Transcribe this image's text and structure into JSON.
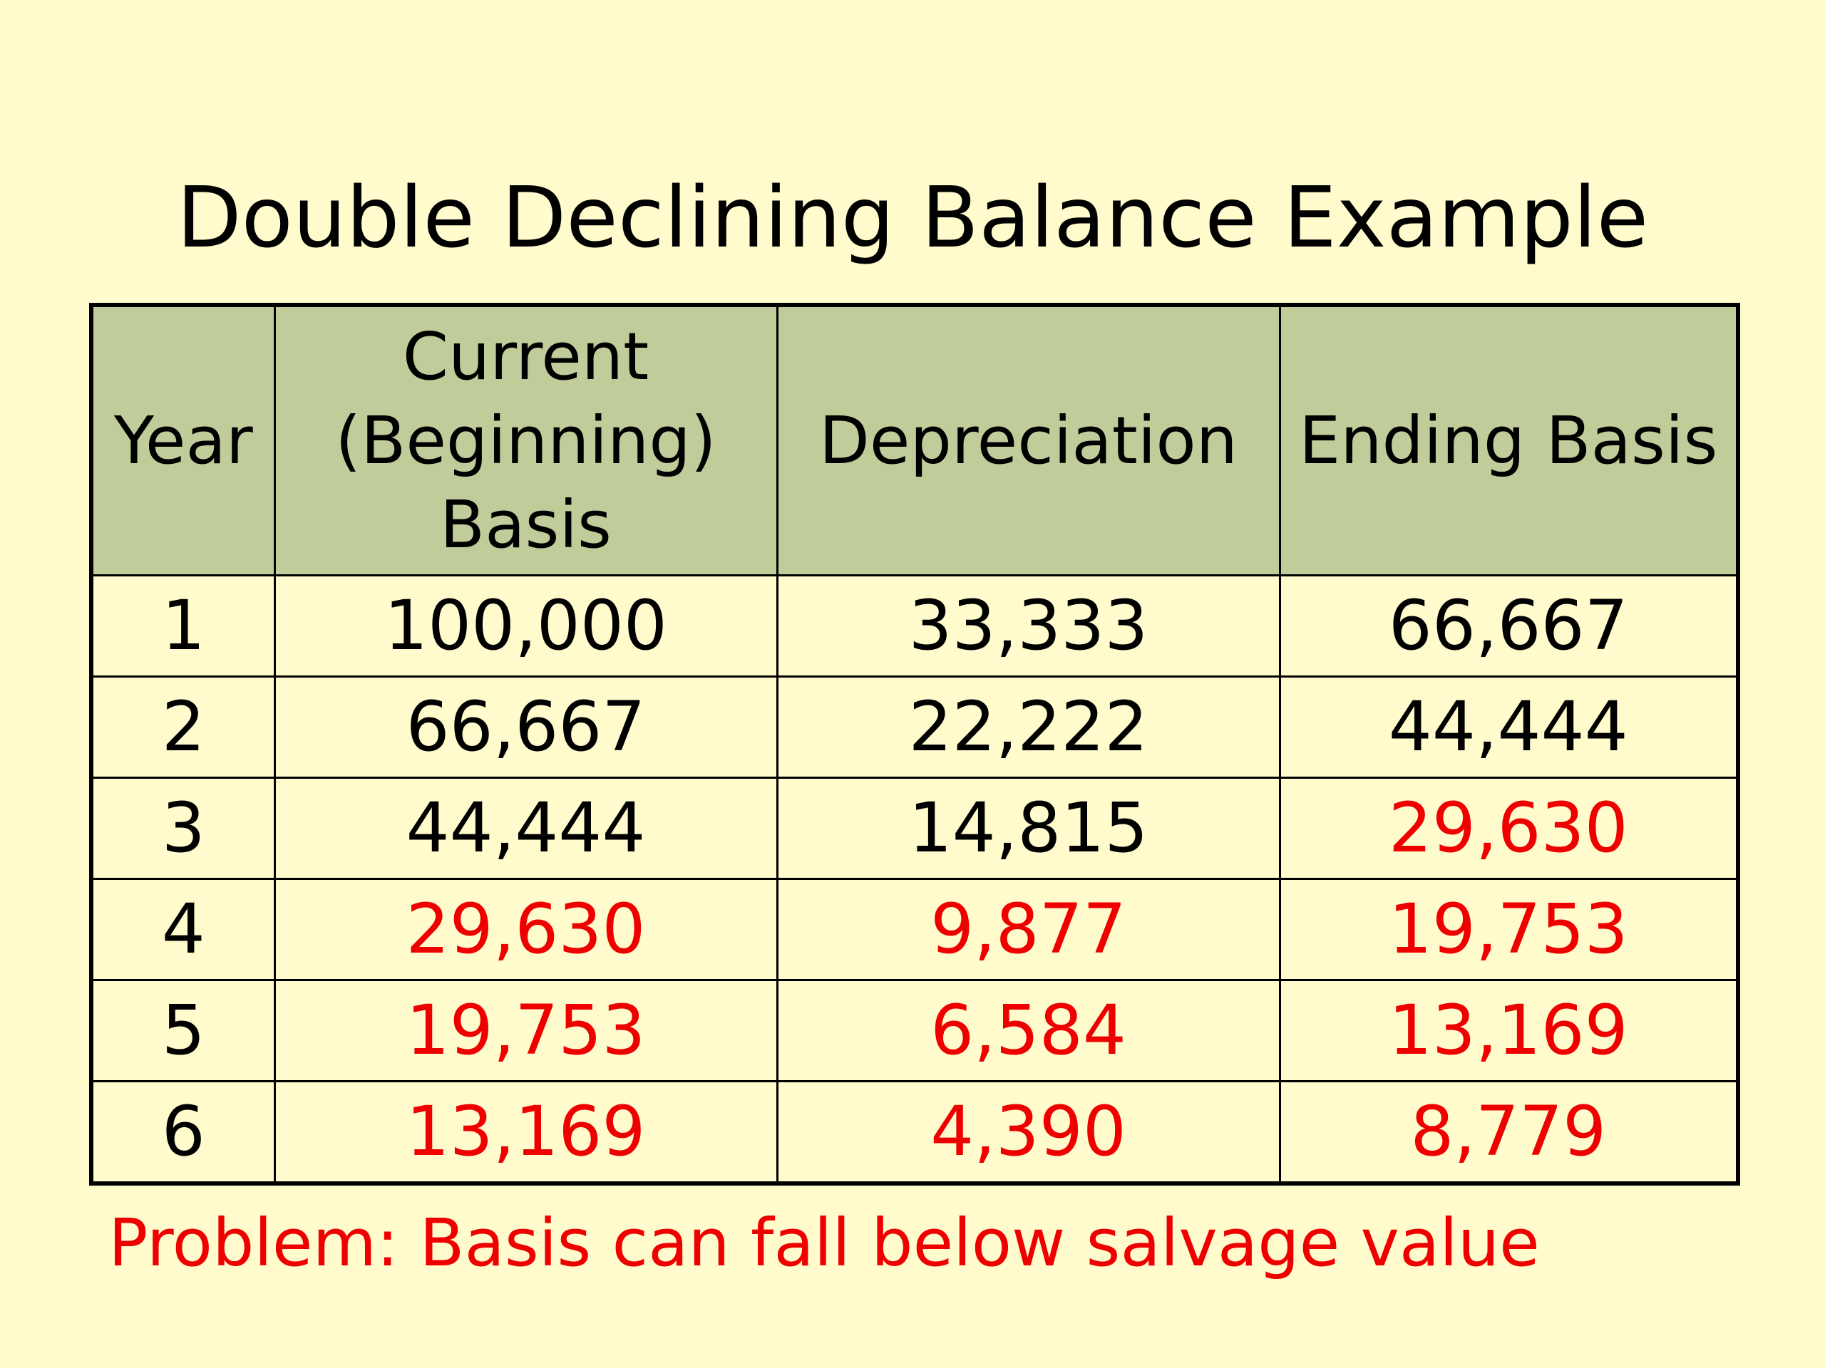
{
  "title": "Double Declining Balance Example",
  "colors": {
    "background": "#fffbcc",
    "header_fill": "#c0cc99",
    "text": "#000000",
    "highlight": "#ee0000"
  },
  "table": {
    "headers": {
      "year": "Year",
      "current_basis": [
        "Current",
        "(Beginning)",
        "Basis"
      ],
      "depreciation": "Depreciation",
      "ending_basis": "Ending Basis"
    },
    "rows": [
      {
        "year": "1",
        "current": "100,000",
        "depreciation": "33,333",
        "ending": "66,667",
        "red": {
          "current": false,
          "depreciation": false,
          "ending": false
        }
      },
      {
        "year": "2",
        "current": "66,667",
        "depreciation": "22,222",
        "ending": "44,444",
        "red": {
          "current": false,
          "depreciation": false,
          "ending": false
        }
      },
      {
        "year": "3",
        "current": "44,444",
        "depreciation": "14,815",
        "ending": "29,630",
        "red": {
          "current": false,
          "depreciation": false,
          "ending": true
        }
      },
      {
        "year": "4",
        "current": "29,630",
        "depreciation": "9,877",
        "ending": "19,753",
        "red": {
          "current": true,
          "depreciation": true,
          "ending": true
        }
      },
      {
        "year": "5",
        "current": "19,753",
        "depreciation": "6,584",
        "ending": "13,169",
        "red": {
          "current": true,
          "depreciation": true,
          "ending": true
        }
      },
      {
        "year": "6",
        "current": "13,169",
        "depreciation": "4,390",
        "ending": "8,779",
        "red": {
          "current": true,
          "depreciation": true,
          "ending": true
        }
      }
    ]
  },
  "note": "Problem: Basis can fall below salvage value"
}
